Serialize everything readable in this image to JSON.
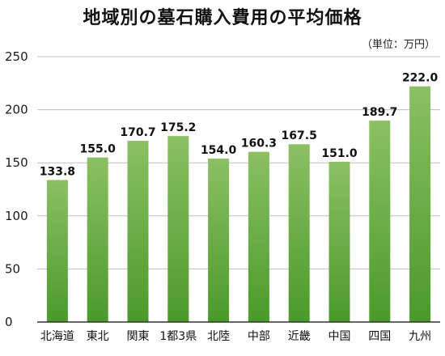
{
  "chart_data": {
    "type": "bar",
    "title": "地域別の墓石購入費用の平均価格",
    "unit_note": "（単位：万円）",
    "categories": [
      "北海道",
      "東北",
      "関東",
      "1都3県",
      "北陸",
      "中部",
      "近畿",
      "中国",
      "四国",
      "九州"
    ],
    "values": [
      133.8,
      155.0,
      170.7,
      175.2,
      154.0,
      160.3,
      167.5,
      151.0,
      189.7,
      222.0
    ],
    "value_labels": [
      "133.8",
      "155.0",
      "170.7",
      "175.2",
      "154.0",
      "160.3",
      "167.5",
      "151.0",
      "189.7",
      "222.0"
    ],
    "yticks": [
      "0",
      "50",
      "100",
      "150",
      "200",
      "250"
    ],
    "ylim": [
      0,
      250
    ],
    "grid": true,
    "legend": "none",
    "colors": {
      "bar_top": "#8cc063",
      "bar_bottom": "#4a9a2a",
      "grid": "#bdbdbd",
      "axis": "#333333"
    }
  }
}
